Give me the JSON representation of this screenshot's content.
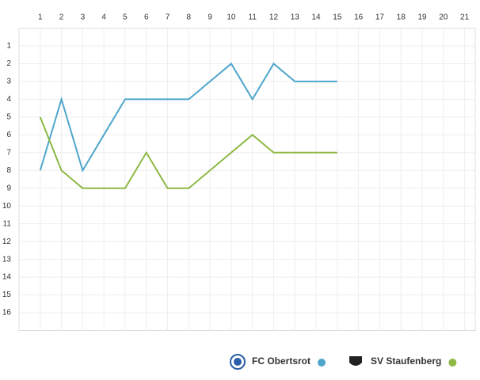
{
  "chart_data": {
    "type": "line",
    "x": [
      1,
      2,
      3,
      4,
      5,
      6,
      7,
      8,
      9,
      10,
      11,
      12,
      13,
      14,
      15
    ],
    "series": [
      {
        "name": "FC Obertsrot",
        "color": "#4ea6cc",
        "values": [
          8,
          4,
          8,
          6,
          4,
          4,
          4,
          4,
          3,
          2,
          4,
          2,
          3,
          3,
          3
        ]
      },
      {
        "name": "SV Staufenberg",
        "color": "#8db843",
        "values": [
          5,
          8,
          9,
          9,
          9,
          7,
          9,
          9,
          8,
          7,
          6,
          7,
          7,
          7,
          7
        ]
      }
    ],
    "xlim": [
      0,
      21.5
    ],
    "xticks": [
      1,
      2,
      3,
      4,
      5,
      6,
      7,
      8,
      9,
      10,
      11,
      12,
      13,
      14,
      15,
      16,
      17,
      18,
      19,
      20,
      21
    ],
    "ylim": [
      0,
      17
    ],
    "yticks": [
      1,
      2,
      3,
      4,
      5,
      6,
      7,
      8,
      9,
      10,
      11,
      12,
      13,
      14,
      15,
      16
    ],
    "y_inverted": true,
    "grid": true,
    "legend": "bottom-right"
  }
}
